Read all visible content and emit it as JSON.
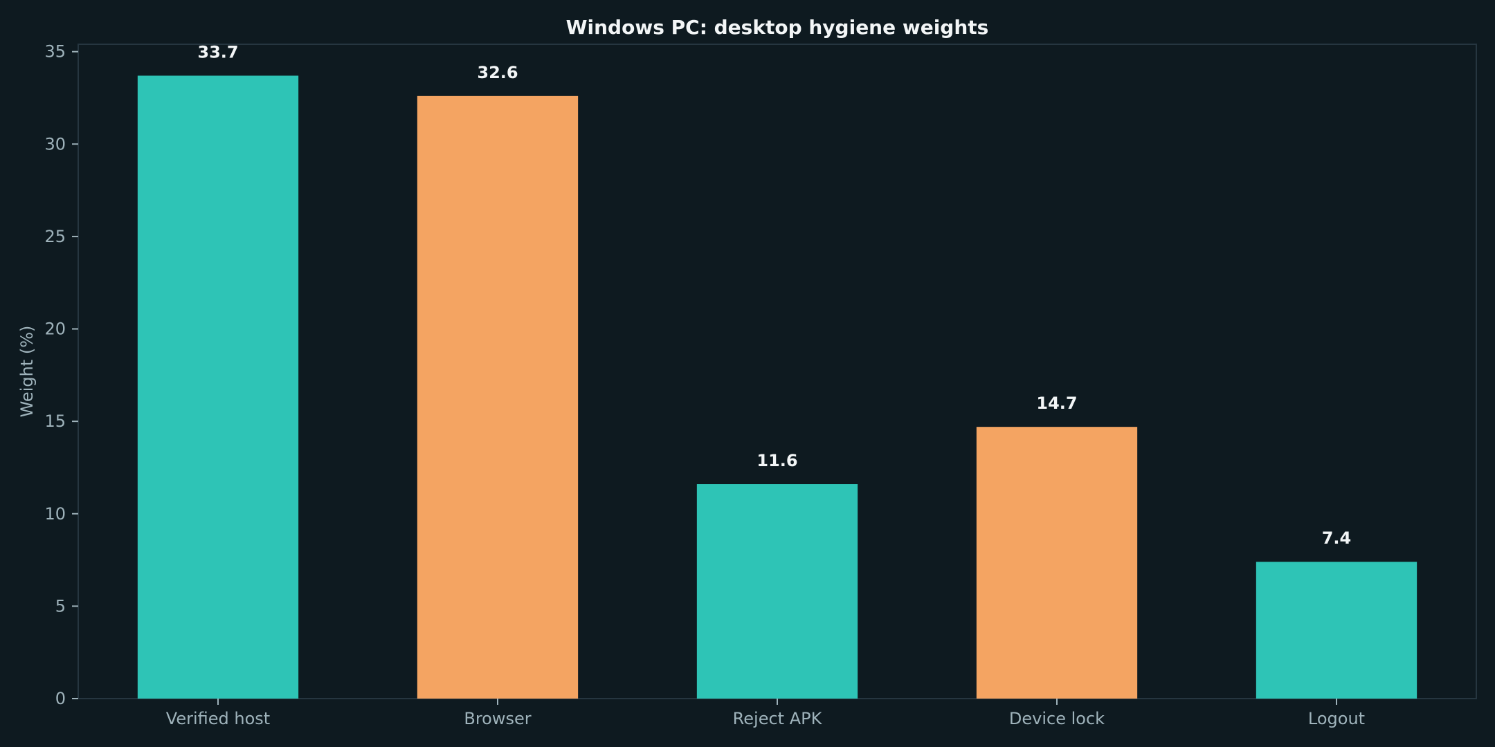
{
  "chart_data": {
    "type": "bar",
    "title": "Windows PC: desktop hygiene weights",
    "xlabel": "",
    "ylabel": "Weight (%)",
    "categories": [
      "Verified host",
      "Browser",
      "Reject APK",
      "Device lock",
      "Logout"
    ],
    "values": [
      33.7,
      32.6,
      11.6,
      14.7,
      7.4
    ],
    "data_labels": [
      "33.7",
      "32.6",
      "11.6",
      "14.7",
      "7.4"
    ],
    "ylim": [
      0,
      35.4
    ],
    "yticks": [
      0,
      5,
      10,
      15,
      20,
      25,
      30,
      35
    ],
    "grid": false,
    "legend": "none",
    "colors": {
      "background": "#0e1a20",
      "bar_teal": "#2ec4b6",
      "bar_orange": "#f4a462",
      "frame": "#263640",
      "tick_text": "#9fb3bb",
      "title_text": "#f3f6f7",
      "data_label_text": "#f3f6f7"
    },
    "bar_colors": [
      "#2ec4b6",
      "#f4a462",
      "#2ec4b6",
      "#f4a462",
      "#2ec4b6"
    ]
  }
}
